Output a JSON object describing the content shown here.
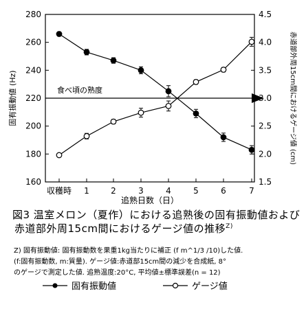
{
  "chart_data": {
    "type": "line",
    "x_categories": [
      "収穫時",
      "1",
      "2",
      "3",
      "4",
      "5",
      "6",
      "7"
    ],
    "xlabel": "追熟日数（日）",
    "ylabel_left": "固有振動値 (Hz)",
    "ylabel_right": "赤道部外周15cm間におけるゲージ値 (cm)",
    "ylim_left": [
      160,
      280
    ],
    "yticks_left": [
      160,
      180,
      200,
      220,
      240,
      260,
      280
    ],
    "ylim_right": [
      1.5,
      4.5
    ],
    "yticks_right": [
      "1.5",
      "2.0",
      "2.5",
      "3.0",
      "3.5",
      "4.0",
      "4.5"
    ],
    "grid": false,
    "annotation": {
      "label": "食べ頃の熟度",
      "y_left": 220
    },
    "series": [
      {
        "name": "固有振動値",
        "axis": "left",
        "marker": "filled-circle",
        "values": [
          266,
          253,
          247,
          240,
          225,
          209,
          192,
          183
        ],
        "errors": [
          1.5,
          2,
          2,
          2.5,
          4,
          3,
          3,
          3
        ]
      },
      {
        "name": "ゲージ値",
        "axis": "right",
        "marker": "open-circle",
        "values": [
          1.98,
          2.32,
          2.58,
          2.74,
          2.86,
          3.29,
          3.51,
          4.01
        ],
        "errors": [
          0.02,
          0.05,
          0.04,
          0.08,
          0.09,
          0.04,
          0.04,
          0.08
        ]
      }
    ]
  },
  "caption": {
    "line1": "図3  温室メロン（夏作）における追熟後の固有振動値および",
    "line2": "赤道部外周15cm間におけるゲージ値の推移",
    "superscript": "Z)"
  },
  "note": {
    "line1": "Z) 固有振動値: 固有振動数を果重1kg当たりに補正 (f m^1/3 /10)した値.",
    "line2": "   (f:固有振動数, m:質量). ゲージ値:赤道部15cm間の減少を合成紙, 8°",
    "line3": "   のゲージで測定した値. 追熟温度:20°C, 平均値±標準誤差(n = 12)"
  },
  "legend": {
    "item1": "固有振動値",
    "item2": "ゲージ値"
  }
}
